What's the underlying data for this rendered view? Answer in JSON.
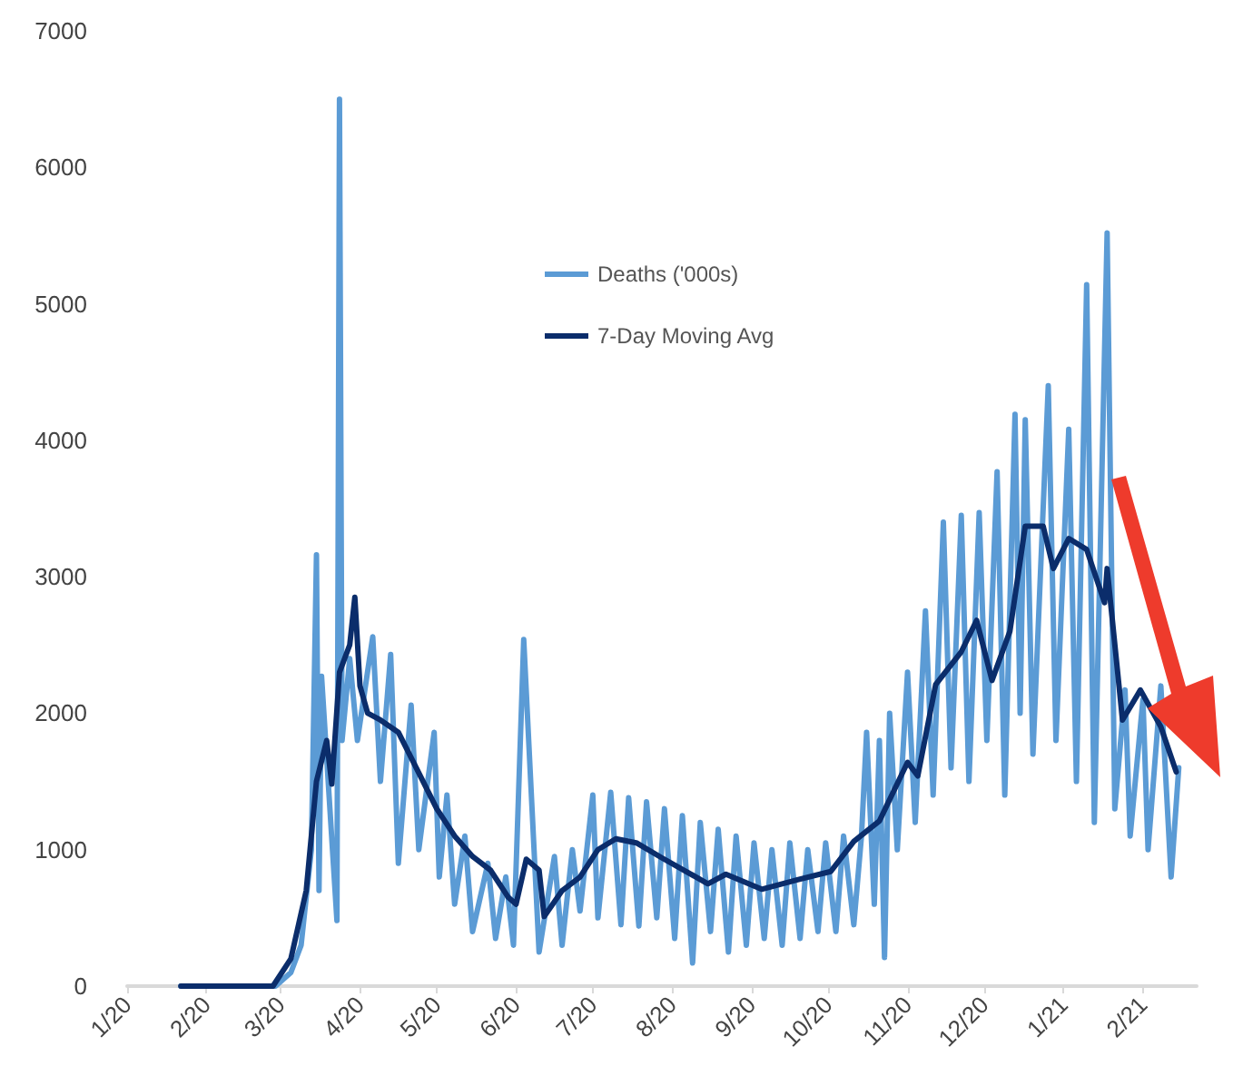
{
  "chart_data": {
    "type": "line",
    "xlim": [
      "2020-01-01",
      "2021-02-22"
    ],
    "xticks": [
      {
        "value": "2020-01-01",
        "label": "1/20"
      },
      {
        "value": "2020-02-01",
        "label": "2/20"
      },
      {
        "value": "2020-03-01",
        "label": "3/20"
      },
      {
        "value": "2020-04-01",
        "label": "4/20"
      },
      {
        "value": "2020-05-01",
        "label": "5/20"
      },
      {
        "value": "2020-06-01",
        "label": "6/20"
      },
      {
        "value": "2020-07-01",
        "label": "7/20"
      },
      {
        "value": "2020-08-01",
        "label": "8/20"
      },
      {
        "value": "2020-09-01",
        "label": "9/20"
      },
      {
        "value": "2020-10-01",
        "label": "10/20"
      },
      {
        "value": "2020-11-01",
        "label": "11/20"
      },
      {
        "value": "2020-12-01",
        "label": "12/20"
      },
      {
        "value": "2021-01-01",
        "label": "1/21"
      },
      {
        "value": "2021-02-01",
        "label": "2/21"
      }
    ],
    "ylim": [
      0,
      7000
    ],
    "yticks": [
      0,
      1000,
      2000,
      3000,
      4000,
      5000,
      6000,
      7000
    ],
    "grid": false,
    "legend": "top",
    "marker": "none",
    "line_style": "solid",
    "series": [
      {
        "name": "Deaths ('000s)",
        "color": "#5b9bd5",
        "x": [
          "2020-01-22",
          "2020-02-28",
          "2020-03-05",
          "2020-03-09",
          "2020-03-13",
          "2020-03-15",
          "2020-03-16",
          "2020-03-17",
          "2020-03-23",
          "2020-03-24",
          "2020-03-25",
          "2020-03-28",
          "2020-03-31",
          "2020-04-06",
          "2020-04-09",
          "2020-04-13",
          "2020-04-16",
          "2020-04-21",
          "2020-04-24",
          "2020-04-30",
          "2020-05-02",
          "2020-05-05",
          "2020-05-08",
          "2020-05-12",
          "2020-05-15",
          "2020-05-21",
          "2020-05-24",
          "2020-05-28",
          "2020-05-31",
          "2020-06-04",
          "2020-06-10",
          "2020-06-16",
          "2020-06-19",
          "2020-06-23",
          "2020-06-26",
          "2020-07-01",
          "2020-07-03",
          "2020-07-08",
          "2020-07-12",
          "2020-07-15",
          "2020-07-19",
          "2020-07-22",
          "2020-07-26",
          "2020-07-29",
          "2020-08-02",
          "2020-08-05",
          "2020-08-09",
          "2020-08-12",
          "2020-08-16",
          "2020-08-19",
          "2020-08-23",
          "2020-08-26",
          "2020-08-30",
          "2020-09-02",
          "2020-09-06",
          "2020-09-09",
          "2020-09-13",
          "2020-09-16",
          "2020-09-20",
          "2020-09-23",
          "2020-09-27",
          "2020-09-30",
          "2020-10-04",
          "2020-10-07",
          "2020-10-11",
          "2020-10-14",
          "2020-10-16",
          "2020-10-19",
          "2020-10-21",
          "2020-10-23",
          "2020-10-25",
          "2020-10-28",
          "2020-11-01",
          "2020-11-04",
          "2020-11-08",
          "2020-11-11",
          "2020-11-15",
          "2020-11-18",
          "2020-11-22",
          "2020-11-25",
          "2020-11-29",
          "2020-12-02",
          "2020-12-06",
          "2020-12-09",
          "2020-12-13",
          "2020-12-15",
          "2020-12-17",
          "2020-12-20",
          "2020-12-26",
          "2020-12-29",
          "2021-01-03",
          "2021-01-06",
          "2021-01-10",
          "2021-01-13",
          "2021-01-18",
          "2021-01-21",
          "2021-01-25",
          "2021-01-27",
          "2021-02-01",
          "2021-02-03",
          "2021-02-08",
          "2021-02-12",
          "2021-02-15"
        ],
        "values": [
          0,
          0,
          100,
          300,
          1000,
          3160,
          700,
          2270,
          480,
          6500,
          1800,
          2400,
          1800,
          2560,
          1500,
          2430,
          900,
          2060,
          1000,
          1860,
          800,
          1400,
          600,
          1100,
          400,
          900,
          350,
          800,
          300,
          2540,
          250,
          950,
          300,
          1000,
          550,
          1400,
          500,
          1420,
          450,
          1380,
          440,
          1350,
          500,
          1300,
          350,
          1250,
          170,
          1200,
          400,
          1150,
          250,
          1100,
          300,
          1050,
          350,
          1000,
          300,
          1050,
          350,
          1000,
          400,
          1050,
          400,
          1100,
          450,
          1100,
          1860,
          600,
          1800,
          210,
          2000,
          1000,
          2300,
          1200,
          2750,
          1400,
          3400,
          1600,
          3450,
          1500,
          3470,
          1800,
          3770,
          1400,
          4190,
          2000,
          4150,
          1700,
          4400,
          1800,
          4080,
          1500,
          5140,
          1200,
          5520,
          1300,
          2170,
          1100,
          2100,
          1000,
          2200,
          800,
          1600
        ]
      },
      {
        "name": "7-Day Moving Avg",
        "color": "#0b2d6b",
        "x": [
          "2020-01-22",
          "2020-02-27",
          "2020-03-05",
          "2020-03-11",
          "2020-03-15",
          "2020-03-19",
          "2020-03-21",
          "2020-03-24",
          "2020-03-28",
          "2020-03-30",
          "2020-04-01",
          "2020-04-04",
          "2020-04-09",
          "2020-04-16",
          "2020-04-23",
          "2020-05-01",
          "2020-05-08",
          "2020-05-15",
          "2020-05-22",
          "2020-05-29",
          "2020-06-01",
          "2020-06-05",
          "2020-06-10",
          "2020-06-12",
          "2020-06-19",
          "2020-06-26",
          "2020-07-03",
          "2020-07-10",
          "2020-07-18",
          "2020-07-28",
          "2020-08-15",
          "2020-08-22",
          "2020-09-05",
          "2020-09-19",
          "2020-10-02",
          "2020-10-11",
          "2020-10-21",
          "2020-11-01",
          "2020-11-05",
          "2020-11-12",
          "2020-11-22",
          "2020-11-28",
          "2020-12-04",
          "2020-12-11",
          "2020-12-17",
          "2020-12-24",
          "2020-12-28",
          "2021-01-03",
          "2021-01-10",
          "2021-01-17",
          "2021-01-18",
          "2021-01-24",
          "2021-01-31",
          "2021-02-08",
          "2021-02-14"
        ],
        "values": [
          0,
          0,
          200,
          700,
          1500,
          1800,
          1480,
          2300,
          2500,
          2850,
          2200,
          2000,
          1950,
          1860,
          1600,
          1300,
          1100,
          950,
          850,
          650,
          600,
          930,
          850,
          510,
          700,
          800,
          1000,
          1080,
          1050,
          940,
          750,
          820,
          710,
          780,
          840,
          1060,
          1210,
          1640,
          1540,
          2210,
          2450,
          2680,
          2240,
          2600,
          3370,
          3370,
          3060,
          3280,
          3200,
          2810,
          3060,
          1950,
          2170,
          1900,
          1570
        ]
      }
    ]
  }
}
